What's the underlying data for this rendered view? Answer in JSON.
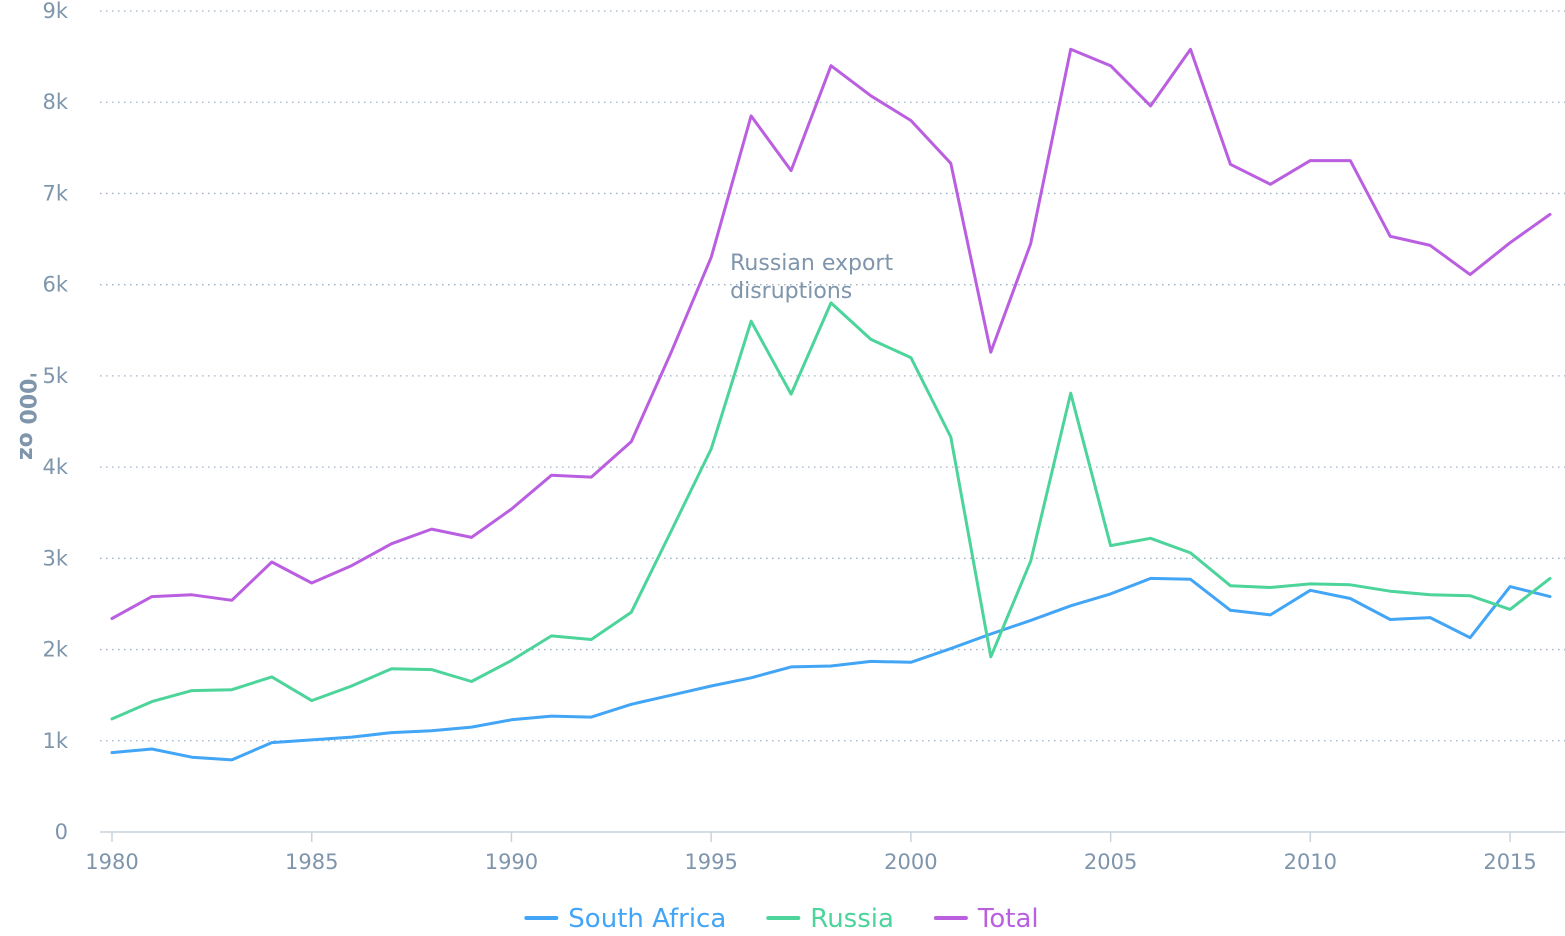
{
  "chart_data": {
    "type": "line",
    "title": "",
    "xlabel": "",
    "ylabel": "'000 oz",
    "xlim": [
      1980,
      2016
    ],
    "ylim": [
      0,
      9000
    ],
    "grid": true,
    "legend_position": "bottom",
    "x": [
      1980,
      1981,
      1982,
      1983,
      1984,
      1985,
      1986,
      1987,
      1988,
      1989,
      1990,
      1991,
      1992,
      1993,
      1994,
      1995,
      1996,
      1997,
      1998,
      1999,
      2000,
      2001,
      2002,
      2003,
      2004,
      2005,
      2006,
      2007,
      2008,
      2009,
      2010,
      2011,
      2012,
      2013,
      2014,
      2015,
      2016
    ],
    "x_ticks": [
      {
        "value": 1980,
        "label": "1980"
      },
      {
        "value": 1985,
        "label": "1985"
      },
      {
        "value": 1990,
        "label": "1990"
      },
      {
        "value": 1995,
        "label": "1995"
      },
      {
        "value": 2000,
        "label": "2000"
      },
      {
        "value": 2005,
        "label": "2005"
      },
      {
        "value": 2010,
        "label": "2010"
      },
      {
        "value": 2015,
        "label": "2015"
      }
    ],
    "y_ticks": [
      {
        "value": 0,
        "label": "0"
      },
      {
        "value": 1000,
        "label": "1k"
      },
      {
        "value": 2000,
        "label": "2k"
      },
      {
        "value": 3000,
        "label": "3k"
      },
      {
        "value": 4000,
        "label": "4k"
      },
      {
        "value": 5000,
        "label": "5k"
      },
      {
        "value": 6000,
        "label": "6k"
      },
      {
        "value": 7000,
        "label": "7k"
      },
      {
        "value": 8000,
        "label": "8k"
      },
      {
        "value": 9000,
        "label": "9k"
      }
    ],
    "series": [
      {
        "name": "South Africa",
        "color": "#42a5f5",
        "values": [
          870,
          910,
          820,
          790,
          980,
          1010,
          1040,
          1090,
          1110,
          1150,
          1230,
          1270,
          1260,
          1400,
          1500,
          1600,
          1690,
          1810,
          1820,
          1870,
          1860,
          2010,
          2170,
          2320,
          2480,
          2610,
          2780,
          2770,
          2430,
          2380,
          2650,
          2560,
          2330,
          2350,
          2130,
          2690,
          2580
        ]
      },
      {
        "name": "Russia",
        "color": "#4cd49a",
        "values": [
          1240,
          1430,
          1550,
          1560,
          1700,
          1440,
          1600,
          1790,
          1780,
          1650,
          1880,
          2150,
          2110,
          2410,
          3300,
          4200,
          5600,
          4800,
          5800,
          5400,
          5200,
          4330,
          1920,
          2970,
          4810,
          3140,
          3220,
          3060,
          2700,
          2680,
          2720,
          2710,
          2640,
          2600,
          2590,
          2440,
          2780
        ]
      },
      {
        "name": "Total",
        "color": "#b95fe0",
        "values": [
          2340,
          2580,
          2600,
          2540,
          2960,
          2730,
          2920,
          3160,
          3320,
          3230,
          3540,
          3910,
          3890,
          4280,
          5260,
          6300,
          7850,
          7250,
          8400,
          8070,
          7800,
          7330,
          5260,
          6450,
          8580,
          8400,
          7960,
          8580,
          7320,
          7100,
          7360,
          7360,
          6530,
          6430,
          6110,
          6460,
          6770
        ]
      }
    ],
    "annotations": [
      {
        "lines": [
          "Russian export",
          "disruptions"
        ],
        "x": 1995.5,
        "y": 6150
      }
    ]
  }
}
